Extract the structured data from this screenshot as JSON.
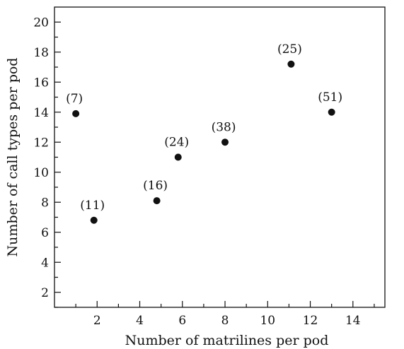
{
  "chart_data": {
    "type": "scatter",
    "title": "",
    "xlabel": "Number of matrilines per pod",
    "ylabel": "Number of call types per pod",
    "xlim": [
      0,
      15.5
    ],
    "ylim": [
      1,
      21
    ],
    "xticks": [
      2,
      4,
      6,
      8,
      10,
      12,
      14
    ],
    "yticks": [
      2,
      4,
      6,
      8,
      10,
      12,
      14,
      16,
      18,
      20
    ],
    "grid": false,
    "series": [
      {
        "points": [
          {
            "x": 1.0,
            "y": 13.9,
            "label": "(7)"
          },
          {
            "x": 1.85,
            "y": 6.8,
            "label": "(11)"
          },
          {
            "x": 4.8,
            "y": 8.1,
            "label": "(16)"
          },
          {
            "x": 5.8,
            "y": 11.0,
            "label": "(24)"
          },
          {
            "x": 8.0,
            "y": 12.0,
            "label": "(38)"
          },
          {
            "x": 11.1,
            "y": 17.2,
            "label": "(25)"
          },
          {
            "x": 13.0,
            "y": 14.0,
            "label": "(51)"
          }
        ]
      }
    ]
  }
}
